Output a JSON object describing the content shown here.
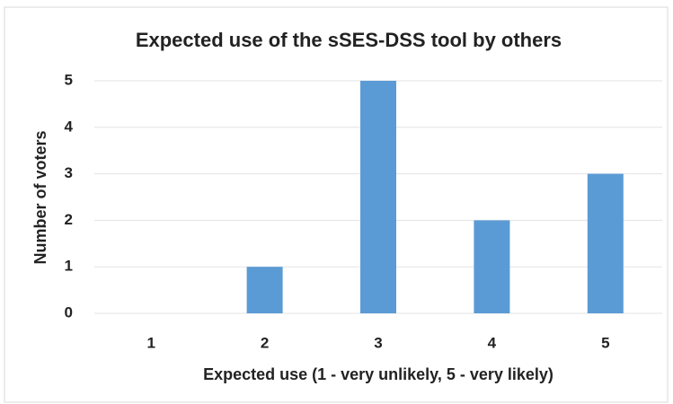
{
  "chart_data": {
    "type": "bar",
    "title": "Expected use of the sSES-DSS tool by others",
    "x_label": "Expected use (1 - very unlikely, 5 - very likely)",
    "y_label": "Number of voters",
    "categories": [
      "1",
      "2",
      "3",
      "4",
      "5"
    ],
    "values": [
      0,
      1,
      5,
      2,
      3
    ],
    "color": "#5b9bd5",
    "ylim": [
      0,
      5
    ],
    "yticks": [
      0,
      1,
      2,
      3,
      4,
      5
    ],
    "grid": true
  }
}
